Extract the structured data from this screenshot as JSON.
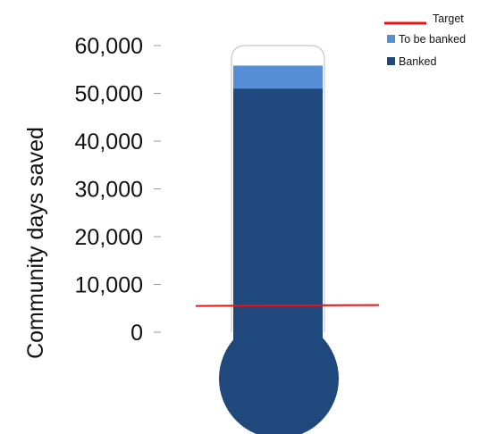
{
  "chart_data": {
    "type": "bar",
    "style": "thermometer",
    "ylabel": "Community days saved",
    "ylim": [
      0,
      60000
    ],
    "yticks": [
      0,
      10000,
      20000,
      30000,
      40000,
      50000,
      60000
    ],
    "ytick_labels": [
      "0",
      "10,000",
      "20,000",
      "30,000",
      "40,000",
      "50,000",
      "60,000"
    ],
    "series": [
      {
        "name": "Banked",
        "value": 51000,
        "color": "#1f497d"
      },
      {
        "name": "To be banked",
        "value": 4800,
        "color": "#558ed5"
      }
    ],
    "target": {
      "name": "Target",
      "value": 5500,
      "color": "#ee1111"
    },
    "legend": {
      "position": "top-right",
      "entries": [
        "Target",
        "To be banked",
        "Banked"
      ]
    }
  }
}
